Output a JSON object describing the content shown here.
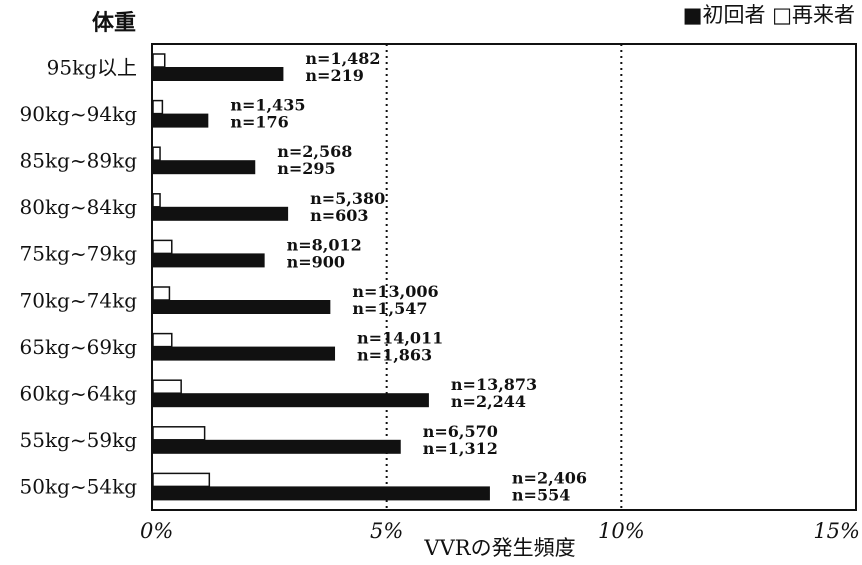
{
  "chart_data": {
    "type": "bar",
    "orientation": "horizontal",
    "y_axis_title": "体重",
    "xlabel": "VVRの発生頻度",
    "xlim": [
      0,
      15
    ],
    "x_ticks": [
      {
        "value": 0,
        "label": "0%"
      },
      {
        "value": 5,
        "label": "5%"
      },
      {
        "value": 10,
        "label": "10%"
      },
      {
        "value": 15,
        "label": "15%"
      }
    ],
    "reference_lines": [
      5,
      10
    ],
    "legend_position": "top-right",
    "legend": [
      {
        "key": "first",
        "symbol": "■",
        "label": "初回者",
        "color": "#111111",
        "filled": true
      },
      {
        "key": "repeat",
        "symbol": "□",
        "label": "再来者",
        "color": "#111111",
        "filled": false
      }
    ],
    "categories": [
      "95kg以上",
      "90kg~94kg",
      "85kg~89kg",
      "80kg~84kg",
      "75kg~79kg",
      "70kg~74kg",
      "65kg~69kg",
      "60kg~64kg",
      "55kg~59kg",
      "50kg~54kg"
    ],
    "series": [
      {
        "key": "repeat",
        "name": "再来者",
        "values": [
          0.25,
          0.2,
          0.15,
          0.15,
          0.4,
          0.35,
          0.4,
          0.6,
          1.1,
          1.2
        ]
      },
      {
        "key": "first",
        "name": "初回者",
        "values": [
          2.8,
          1.2,
          2.2,
          2.9,
          2.4,
          3.8,
          3.9,
          5.9,
          5.3,
          7.2
        ]
      }
    ],
    "data_labels": [
      {
        "repeat": "n=1,482",
        "first": "n=219"
      },
      {
        "repeat": "n=1,435",
        "first": "n=176"
      },
      {
        "repeat": "n=2,568",
        "first": "n=295"
      },
      {
        "repeat": "n=5,380",
        "first": "n=603"
      },
      {
        "repeat": "n=8,012",
        "first": "n=900"
      },
      {
        "repeat": "n=13,006",
        "first": "n=1,547"
      },
      {
        "repeat": "n=14,011",
        "first": "n=1,863"
      },
      {
        "repeat": "n=13,873",
        "first": "n=2,244"
      },
      {
        "repeat": "n=6,570",
        "first": "n=1,312"
      },
      {
        "repeat": "n=2,406",
        "first": "n=554"
      }
    ]
  }
}
